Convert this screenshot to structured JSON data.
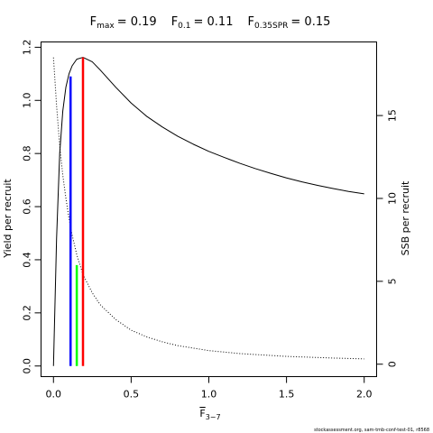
{
  "chart_data": {
    "type": "line",
    "title": {
      "parts": [
        {
          "main": "F",
          "sub": "max",
          "value": "= 0.19"
        },
        {
          "main": "F",
          "sub": "0.1",
          "value": "= 0.11"
        },
        {
          "main": "F",
          "sub": "0.35SPR",
          "value": "= 0.15"
        }
      ]
    },
    "xlabel": {
      "main": "F",
      "sub": "3−7",
      "overline": true
    },
    "ylabel_left": "Yield per recruit",
    "ylabel_right": "SSB per recruit",
    "xlim": [
      -0.08,
      2.08
    ],
    "ylim_left": [
      -0.04,
      1.22
    ],
    "ylim_right": [
      -0.75,
      19.44
    ],
    "x_ticks": [
      {
        "value": 0,
        "label": "0.0"
      },
      {
        "value": 0.5,
        "label": "0.5"
      },
      {
        "value": 1.0,
        "label": "1.0"
      },
      {
        "value": 1.5,
        "label": "1.5"
      },
      {
        "value": 2.0,
        "label": "2.0"
      }
    ],
    "y_left_ticks": [
      {
        "value": 0,
        "label": "0.0"
      },
      {
        "value": 0.2,
        "label": "0.2"
      },
      {
        "value": 0.4,
        "label": "0.4"
      },
      {
        "value": 0.6,
        "label": "0.6"
      },
      {
        "value": 0.8,
        "label": "0.8"
      },
      {
        "value": 1.0,
        "label": "1.0"
      },
      {
        "value": 1.2,
        "label": "1.2"
      }
    ],
    "y_right_ticks": [
      {
        "value": 0,
        "label": "0"
      },
      {
        "value": 5,
        "label": "5"
      },
      {
        "value": 10,
        "label": "10"
      },
      {
        "value": 15,
        "label": "15"
      }
    ],
    "series": [
      {
        "role": "yield-per-recruit",
        "axis": "left",
        "style": "solid",
        "color": "#000000",
        "x": [
          0,
          0.02,
          0.04,
          0.06,
          0.08,
          0.1,
          0.12,
          0.15,
          0.19,
          0.25,
          0.3,
          0.4,
          0.5,
          0.6,
          0.7,
          0.8,
          0.9,
          1.0,
          1.1,
          1.2,
          1.3,
          1.4,
          1.5,
          1.6,
          1.7,
          1.8,
          1.9,
          2.0
        ],
        "y": [
          0.0,
          0.48,
          0.8,
          0.96,
          1.05,
          1.1,
          1.13,
          1.155,
          1.162,
          1.145,
          1.115,
          1.05,
          0.99,
          0.94,
          0.9,
          0.865,
          0.835,
          0.808,
          0.785,
          0.763,
          0.743,
          0.725,
          0.708,
          0.693,
          0.68,
          0.668,
          0.657,
          0.648
        ]
      },
      {
        "role": "ssb-per-recruit",
        "axis": "right",
        "style": "dotted",
        "color": "#000000",
        "x": [
          0,
          0.02,
          0.04,
          0.06,
          0.08,
          0.1,
          0.12,
          0.15,
          0.19,
          0.25,
          0.3,
          0.4,
          0.5,
          0.6,
          0.7,
          0.8,
          1.0,
          1.2,
          1.5,
          1.8,
          2.0
        ],
        "y": [
          18.5,
          15.6,
          13.2,
          11.4,
          10.0,
          8.8,
          7.8,
          6.6,
          5.4,
          4.3,
          3.6,
          2.7,
          2.05,
          1.65,
          1.35,
          1.12,
          0.82,
          0.64,
          0.47,
          0.37,
          0.32
        ]
      }
    ],
    "reference_lines": [
      {
        "x": 0.11,
        "y": 1.09,
        "color": "#0000ff",
        "label": "F0.1"
      },
      {
        "x": 0.15,
        "y": 0.38,
        "color": "#00ff00",
        "label": "F0.35SPR"
      },
      {
        "x": 0.19,
        "y": 1.162,
        "color": "#ff0000",
        "label": "Fmax"
      }
    ]
  },
  "credit": "stockassessment.org, sam-tmb-conf-test-01, r8568"
}
